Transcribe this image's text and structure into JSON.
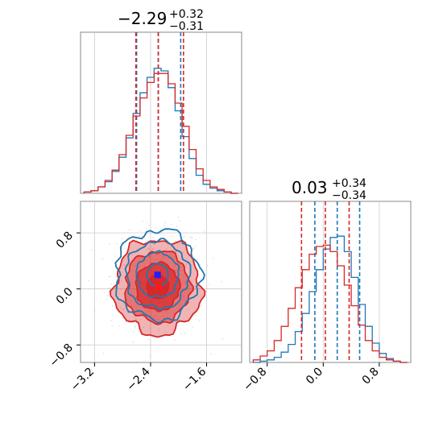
{
  "chart_data": [
    {
      "type": "histogram",
      "panel": "top-left",
      "title": {
        "value": "−2.29",
        "sup": "+0.32",
        "sub": "−0.31"
      },
      "xlim": [
        -3.4,
        -1.1
      ],
      "series": [
        {
          "name": "",
          "color": "#1f77b4",
          "bin_centers": [
            -3.3,
            -3.2,
            -3.1,
            -3.0,
            -2.9,
            -2.8,
            -2.7,
            -2.6,
            -2.5,
            -2.4,
            -2.3,
            -2.2,
            -2.1,
            -2.0,
            -1.9,
            -1.8,
            -1.7,
            -1.6,
            -1.5,
            -1.4,
            -1.3,
            -1.2
          ],
          "counts": [
            0.01,
            0.02,
            0.05,
            0.09,
            0.17,
            0.28,
            0.43,
            0.62,
            0.78,
            0.9,
            0.97,
            0.95,
            0.82,
            0.64,
            0.44,
            0.27,
            0.14,
            0.07,
            0.04,
            0.02,
            0.01,
            0.0
          ],
          "quantiles": [
            -2.6,
            -2.29,
            -1.97
          ]
        },
        {
          "name": "",
          "color": "#d62728",
          "bin_centers": [
            -3.3,
            -3.2,
            -3.1,
            -3.0,
            -2.9,
            -2.8,
            -2.7,
            -2.6,
            -2.5,
            -2.4,
            -2.3,
            -2.2,
            -2.1,
            -2.0,
            -1.9,
            -1.8,
            -1.7,
            -1.6,
            -1.5,
            -1.4,
            -1.3,
            -1.2
          ],
          "counts": [
            0.01,
            0.02,
            0.05,
            0.1,
            0.18,
            0.3,
            0.45,
            0.6,
            0.74,
            0.86,
            0.93,
            0.93,
            0.85,
            0.7,
            0.52,
            0.34,
            0.19,
            0.1,
            0.05,
            0.03,
            0.01,
            0.0
          ],
          "quantiles": [
            -2.61,
            -2.29,
            -1.93
          ]
        }
      ]
    },
    {
      "type": "contour",
      "panel": "bottom-left",
      "xlim": [
        -3.4,
        -1.1
      ],
      "ylim": [
        -1.05,
        1.25
      ],
      "x_ticks": [
        -3.2,
        -2.4,
        -1.6
      ],
      "y_ticks": [
        -0.8,
        0.0,
        0.8
      ],
      "x_tick_labels": [
        "−3.2",
        "−2.4",
        "−1.6"
      ],
      "y_tick_labels": [
        "−0.8",
        "0.0",
        "0.8"
      ],
      "series": [
        {
          "name": "",
          "color": "#d62728",
          "center": [
            -2.3,
            0.03
          ],
          "sigma": [
            0.31,
            0.34
          ],
          "filled": true
        },
        {
          "name": "",
          "color": "#1f77b4",
          "center": [
            -2.3,
            0.2
          ],
          "sigma": [
            0.3,
            0.32
          ],
          "filled": false
        }
      ],
      "markers": [
        {
          "color": "#1f1fff",
          "x": -2.3,
          "y": 0.2
        },
        {
          "color": "#ff1a1a",
          "x": -2.29,
          "y": 0.03
        }
      ]
    },
    {
      "type": "histogram",
      "panel": "bottom-right",
      "title": {
        "value": "0.03",
        "sup": "+0.34",
        "sub": "−0.34"
      },
      "xlim": [
        -1.05,
        1.25
      ],
      "x_ticks": [
        -0.8,
        0.0,
        0.8
      ],
      "x_tick_labels": [
        "−0.8",
        "0.0",
        "0.8"
      ],
      "series": [
        {
          "name": "",
          "color": "#1f77b4",
          "bin_centers": [
            -0.95,
            -0.85,
            -0.75,
            -0.65,
            -0.55,
            -0.45,
            -0.35,
            -0.25,
            -0.15,
            -0.05,
            0.05,
            0.15,
            0.25,
            0.35,
            0.45,
            0.55,
            0.65,
            0.75,
            0.85,
            0.95,
            1.05,
            1.15
          ],
          "counts": [
            0.0,
            0.01,
            0.02,
            0.04,
            0.08,
            0.14,
            0.24,
            0.38,
            0.55,
            0.72,
            0.88,
            0.97,
            0.98,
            0.86,
            0.66,
            0.45,
            0.28,
            0.15,
            0.07,
            0.03,
            0.01,
            0.0
          ],
          "quantiles": [
            -0.12,
            0.2,
            0.52
          ]
        },
        {
          "name": "",
          "color": "#d62728",
          "bin_centers": [
            -0.95,
            -0.85,
            -0.75,
            -0.65,
            -0.55,
            -0.45,
            -0.35,
            -0.25,
            -0.15,
            -0.05,
            0.05,
            0.15,
            0.25,
            0.35,
            0.45,
            0.55,
            0.65,
            0.75,
            0.85,
            0.95,
            1.05,
            1.15
          ],
          "counts": [
            0.02,
            0.05,
            0.09,
            0.17,
            0.28,
            0.42,
            0.58,
            0.72,
            0.84,
            0.9,
            0.91,
            0.86,
            0.75,
            0.6,
            0.44,
            0.29,
            0.17,
            0.09,
            0.04,
            0.02,
            0.01,
            0.0
          ],
          "quantiles": [
            -0.31,
            0.03,
            0.37
          ]
        }
      ]
    }
  ]
}
